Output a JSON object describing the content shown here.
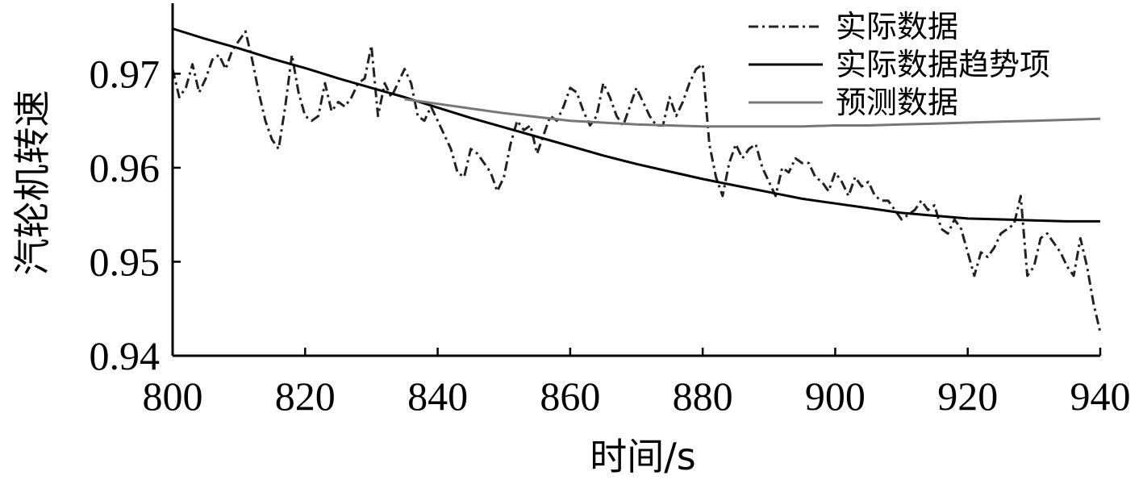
{
  "chart_data": {
    "type": "line",
    "title": "",
    "xlabel": "时间/s",
    "ylabel": "汽轮机转速",
    "xlim": [
      800,
      940
    ],
    "ylim": [
      0.94,
      0.9775
    ],
    "x_ticks": [
      "800",
      "820",
      "840",
      "860",
      "880",
      "900",
      "920",
      "940"
    ],
    "y_ticks": [
      "0.94",
      "0.95",
      "0.96",
      "0.97"
    ],
    "grid": false,
    "legend_position": "top-right",
    "series": [
      {
        "name": "实际数据",
        "style": "dashdot",
        "color": "#222222",
        "x": [
          800,
          801,
          802,
          803,
          804,
          805,
          806,
          807,
          808,
          809,
          810,
          811,
          812,
          813,
          814,
          815,
          816,
          817,
          818,
          819,
          820,
          821,
          822,
          823,
          824,
          825,
          826,
          827,
          828,
          829,
          830,
          831,
          832,
          833,
          834,
          835,
          836,
          837,
          838,
          839,
          840,
          841,
          842,
          843,
          844,
          845,
          846,
          847,
          848,
          849,
          850,
          851,
          852,
          853,
          854,
          855,
          856,
          857,
          858,
          859,
          860,
          861,
          862,
          863,
          864,
          865,
          866,
          867,
          868,
          869,
          870,
          871,
          872,
          873,
          874,
          875,
          876,
          877,
          878,
          879,
          880,
          881,
          882,
          883,
          884,
          885,
          886,
          887,
          888,
          889,
          890,
          891,
          892,
          893,
          894,
          895,
          896,
          897,
          898,
          899,
          900,
          901,
          902,
          903,
          904,
          905,
          906,
          907,
          908,
          909,
          910,
          911,
          912,
          913,
          914,
          915,
          916,
          917,
          918,
          919,
          920,
          921,
          922,
          923,
          924,
          925,
          926,
          927,
          928,
          929,
          930,
          931,
          932,
          933,
          934,
          935,
          936,
          937,
          938,
          939,
          940
        ],
        "values": [
          0.9705,
          0.9675,
          0.9685,
          0.971,
          0.968,
          0.9695,
          0.9715,
          0.972,
          0.9705,
          0.9725,
          0.9735,
          0.9745,
          0.9715,
          0.968,
          0.965,
          0.963,
          0.962,
          0.9665,
          0.972,
          0.968,
          0.9655,
          0.965,
          0.9655,
          0.969,
          0.966,
          0.967,
          0.9665,
          0.9675,
          0.969,
          0.9695,
          0.973,
          0.9655,
          0.969,
          0.9675,
          0.969,
          0.9705,
          0.969,
          0.9655,
          0.965,
          0.9665,
          0.965,
          0.9635,
          0.962,
          0.9595,
          0.959,
          0.962,
          0.9615,
          0.9605,
          0.9595,
          0.9575,
          0.959,
          0.9625,
          0.965,
          0.964,
          0.9645,
          0.9615,
          0.9635,
          0.9655,
          0.965,
          0.9665,
          0.9685,
          0.968,
          0.966,
          0.9645,
          0.9655,
          0.969,
          0.9675,
          0.9655,
          0.9645,
          0.9665,
          0.9685,
          0.967,
          0.9655,
          0.9645,
          0.9645,
          0.9675,
          0.9655,
          0.967,
          0.969,
          0.9705,
          0.971,
          0.9625,
          0.959,
          0.957,
          0.9605,
          0.9625,
          0.961,
          0.962,
          0.9625,
          0.96,
          0.9585,
          0.957,
          0.96,
          0.9595,
          0.961,
          0.9605,
          0.9605,
          0.959,
          0.9585,
          0.9575,
          0.9595,
          0.9585,
          0.957,
          0.959,
          0.958,
          0.9585,
          0.957,
          0.9565,
          0.9565,
          0.9555,
          0.9545,
          0.955,
          0.9555,
          0.9565,
          0.9555,
          0.956,
          0.9535,
          0.953,
          0.9545,
          0.9535,
          0.951,
          0.9485,
          0.951,
          0.9505,
          0.9515,
          0.953,
          0.9535,
          0.954,
          0.957,
          0.9485,
          0.9495,
          0.9525,
          0.953,
          0.952,
          0.951,
          0.9495,
          0.9485,
          0.9525,
          0.9495,
          0.9455,
          0.9425
        ]
      },
      {
        "name": "实际数据趋势项",
        "style": "solid",
        "color": "#000000",
        "x": [
          800,
          805,
          810,
          815,
          820,
          825,
          830,
          835,
          840,
          845,
          850,
          855,
          860,
          865,
          870,
          875,
          880,
          885,
          890,
          895,
          900,
          905,
          910,
          915,
          920,
          925,
          930,
          935,
          940
        ],
        "values": [
          0.9748,
          0.9737,
          0.9727,
          0.9716,
          0.9706,
          0.9695,
          0.9685,
          0.9675,
          0.9664,
          0.9653,
          0.9643,
          0.9633,
          0.9623,
          0.9613,
          0.9604,
          0.9596,
          0.9588,
          0.9581,
          0.9574,
          0.9567,
          0.9562,
          0.9557,
          0.9552,
          0.9549,
          0.9546,
          0.9545,
          0.9544,
          0.9543,
          0.9543
        ]
      },
      {
        "name": "预测数据",
        "style": "solid",
        "color": "#777777",
        "x": [
          835,
          840,
          845,
          850,
          855,
          860,
          865,
          870,
          875,
          880,
          885,
          890,
          895,
          900,
          905,
          910,
          915,
          920,
          925,
          930,
          935,
          940
        ],
        "values": [
          0.9673,
          0.9668,
          0.9663,
          0.9658,
          0.9654,
          0.965,
          0.9648,
          0.9646,
          0.9645,
          0.9644,
          0.9644,
          0.9644,
          0.9644,
          0.9645,
          0.9645,
          0.9646,
          0.9647,
          0.9648,
          0.9649,
          0.965,
          0.9651,
          0.9652
        ]
      }
    ]
  }
}
